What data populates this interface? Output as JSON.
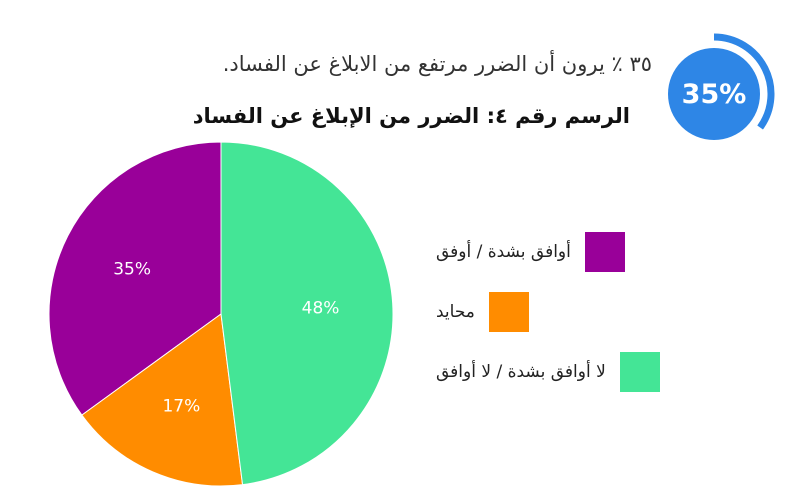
{
  "header": {
    "stat_text": "٣٥ ٪ يرون أن الضرر مرتفع من الابلاغ عن الفساد.",
    "badge_value": "35%",
    "badge_fraction": 0.35,
    "badge_color": "#2e86e6"
  },
  "chart_data": {
    "type": "pie",
    "title": "الرسم رقم ٤: الضرر من الإبلاغ عن الفساد",
    "categories": [
      "أوافق بشدة / أوفق",
      "محايد",
      "لا أوافق بشدة / لا أوافق"
    ],
    "values": [
      35,
      17,
      48
    ],
    "labels": [
      "35%",
      "17%",
      "48%"
    ],
    "colors": [
      "#990099",
      "#ff8c00",
      "#44e596"
    ],
    "legend_position": "right"
  }
}
